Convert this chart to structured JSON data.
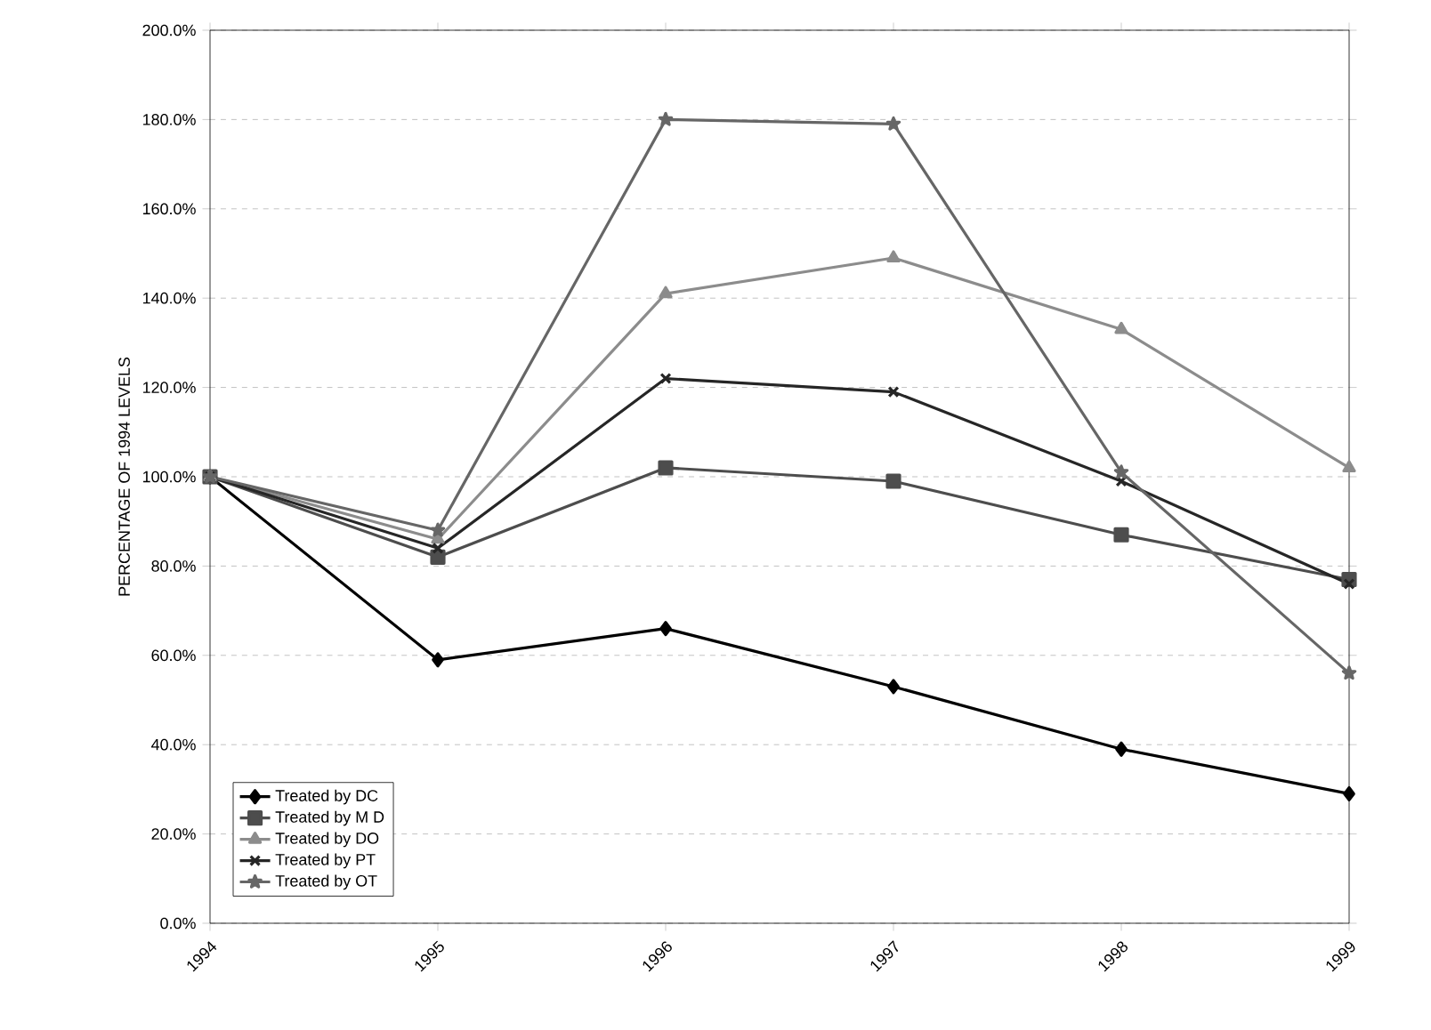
{
  "chart_data": {
    "type": "line",
    "ylabel": "PERCENTAGE OF 1994 LEVELS",
    "categories": [
      "1994",
      "1995",
      "1996",
      "1997",
      "1998",
      "1999"
    ],
    "series": [
      {
        "name": "Treated by DC",
        "color": "#000000",
        "marker": "diamond",
        "values": [
          100,
          59,
          66,
          53,
          39,
          29
        ]
      },
      {
        "name": "Treated by M D",
        "color": "#4d4d4d",
        "marker": "square",
        "values": [
          100,
          82,
          102,
          99,
          87,
          77
        ]
      },
      {
        "name": "Treated by DO",
        "color": "#8c8c8c",
        "marker": "triangle",
        "values": [
          100,
          86,
          141,
          149,
          133,
          102
        ]
      },
      {
        "name": "Treated by PT",
        "color": "#262626",
        "marker": "cross",
        "values": [
          100,
          84,
          122,
          119,
          99,
          76
        ]
      },
      {
        "name": "Treated by OT",
        "color": "#666666",
        "marker": "star",
        "values": [
          100,
          88,
          180,
          179,
          101,
          56
        ]
      }
    ],
    "ylim": [
      0,
      200
    ],
    "yticks": [
      {
        "value": 0,
        "label": "0.0%"
      },
      {
        "value": 20,
        "label": "20.0%"
      },
      {
        "value": 40,
        "label": "40.0%"
      },
      {
        "value": 60,
        "label": "60.0%"
      },
      {
        "value": 80,
        "label": "80.0%"
      },
      {
        "value": 100,
        "label": "100.0%"
      },
      {
        "value": 120,
        "label": "120.0%"
      },
      {
        "value": 140,
        "label": "140.0%"
      },
      {
        "value": 160,
        "label": "160.0%"
      },
      {
        "value": 180,
        "label": "180.0%"
      },
      {
        "value": 200,
        "label": "200.0%"
      }
    ],
    "grid": "y",
    "legend": "bottom left",
    "line_style": "solid"
  }
}
